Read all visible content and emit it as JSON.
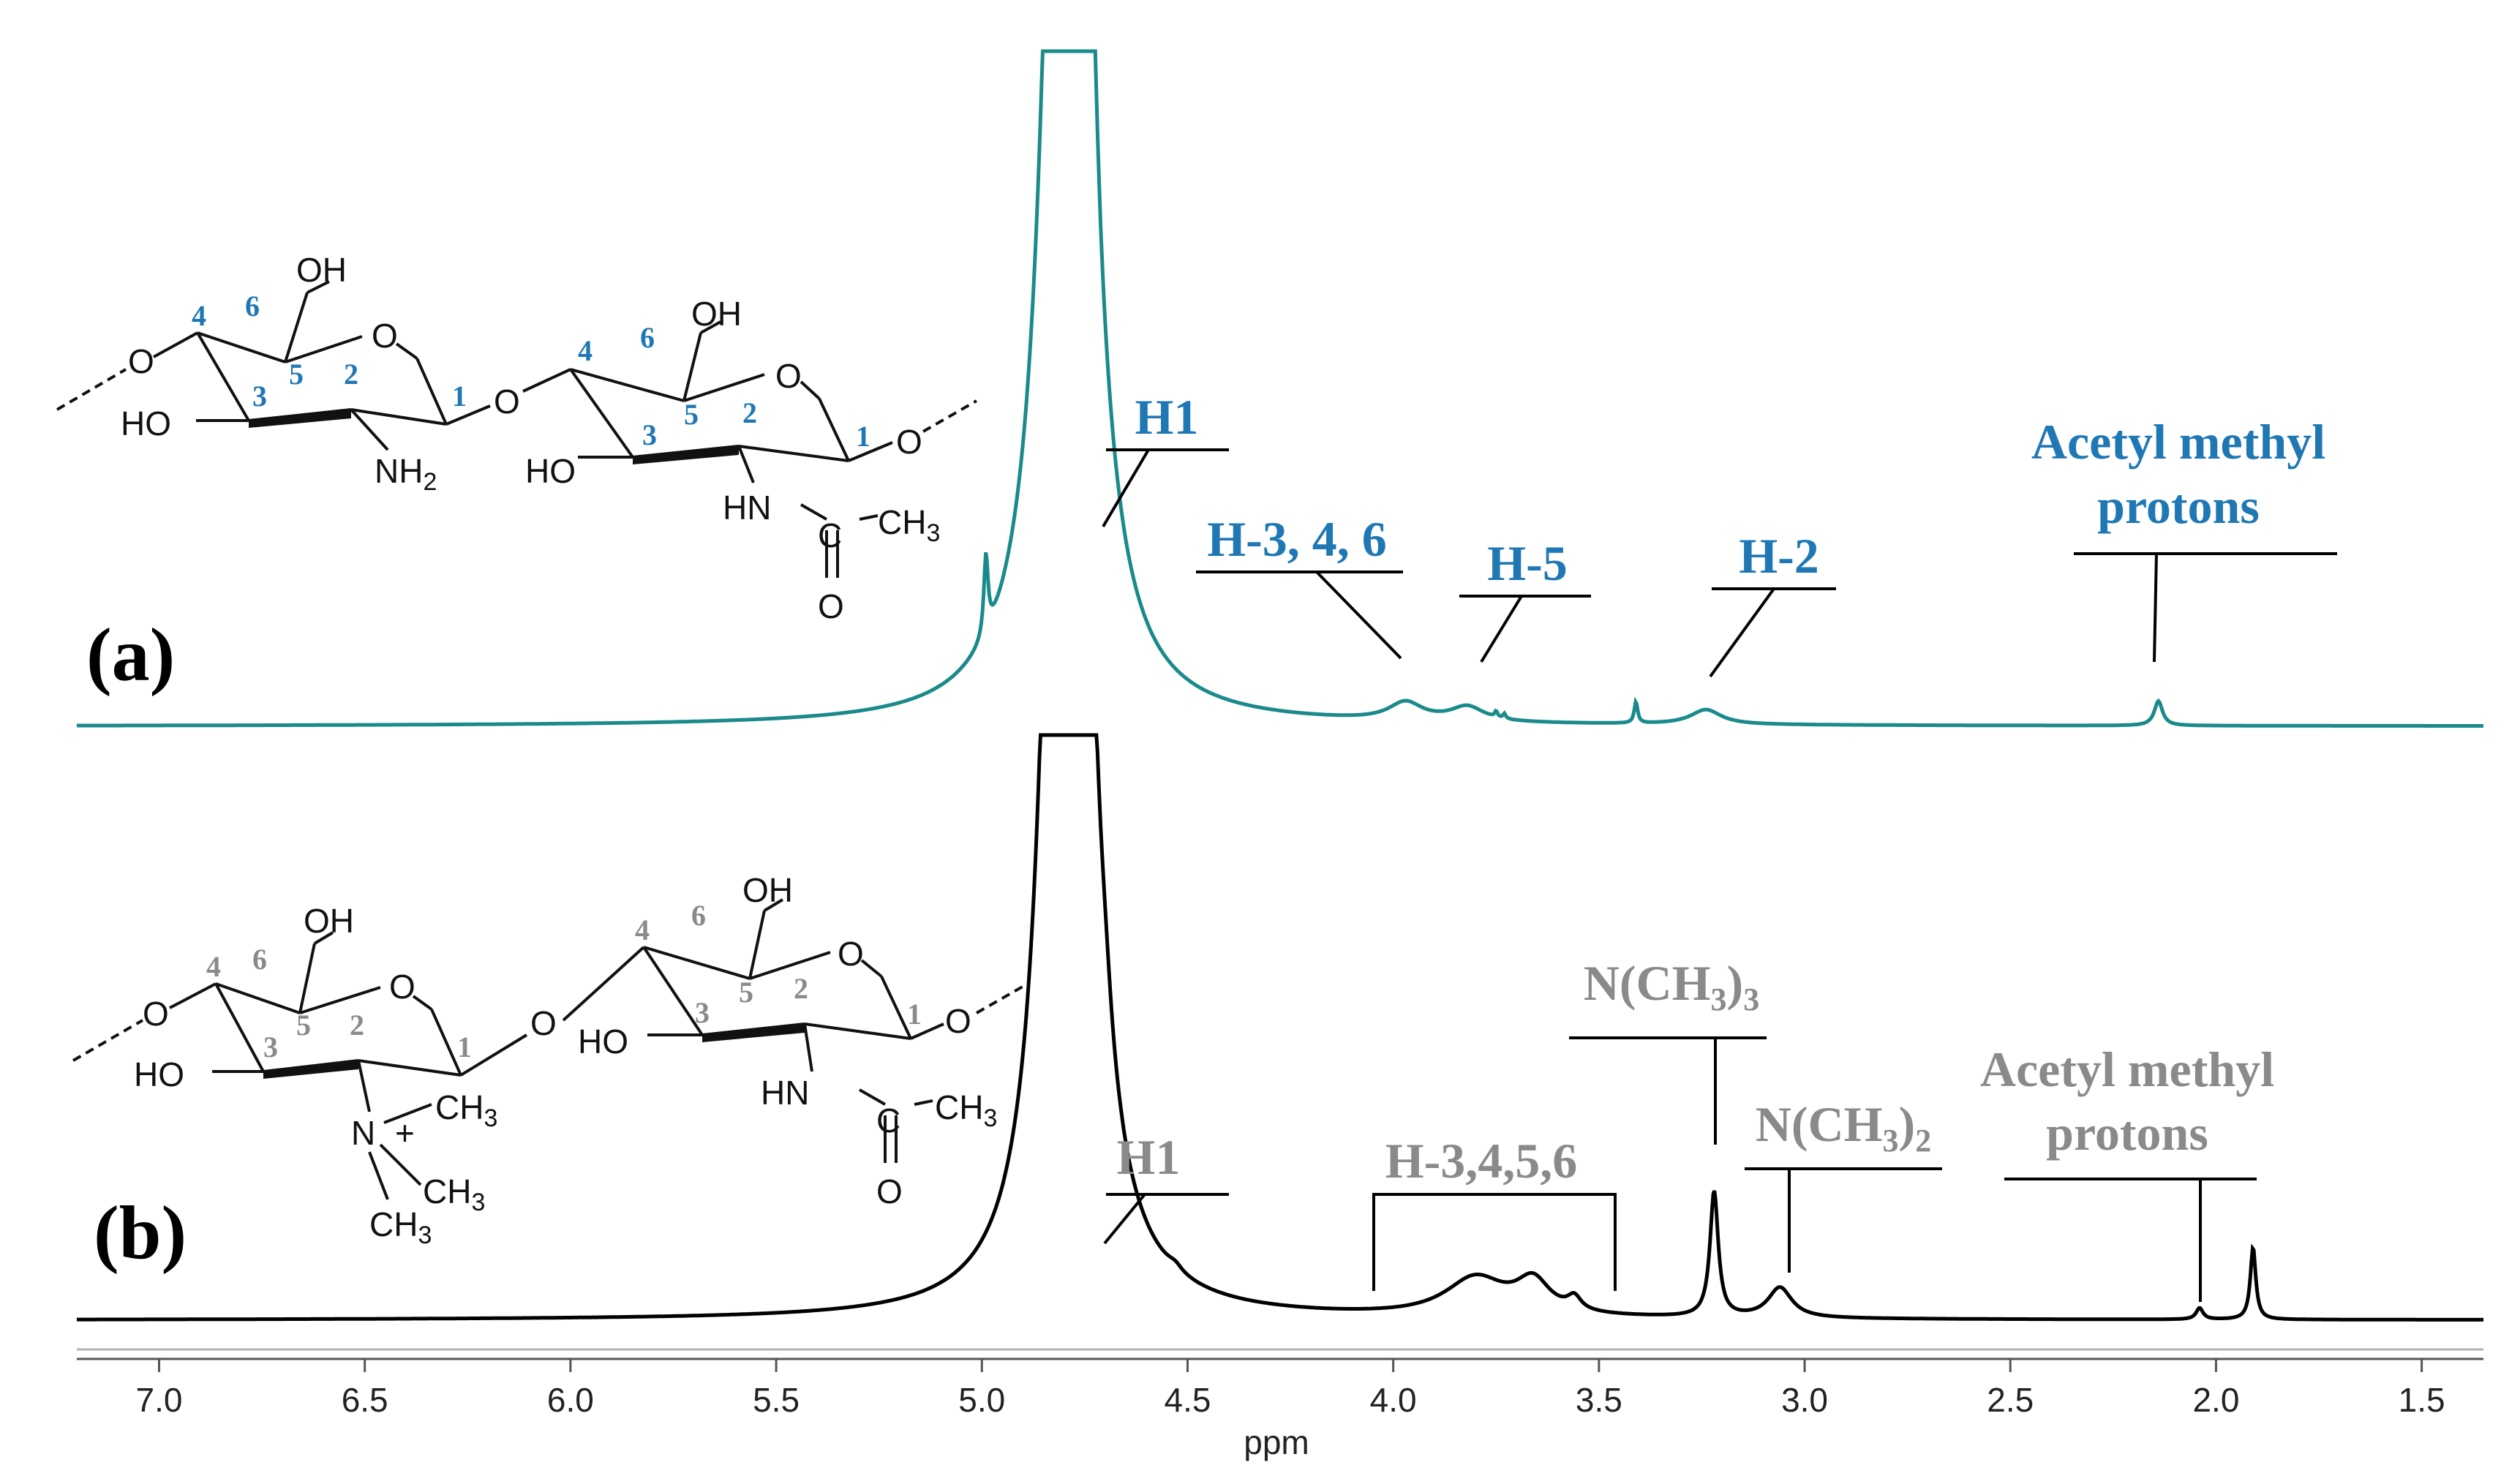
{
  "chart_data": {
    "type": "line",
    "xlabel": "ppm",
    "xlim": [
      7.2,
      1.35
    ],
    "x_reversed": true,
    "x_ticks": [
      "7.0",
      "6.5",
      "6.0",
      "5.5",
      "5.0",
      "4.5",
      "4.0",
      "3.5",
      "3.0",
      "2.5",
      "2.0",
      "1.5"
    ],
    "panels": [
      {
        "label": "(a)",
        "color": "#1a8a8a",
        "label_color": "#1f78b4",
        "baseline": 0.0,
        "peaks": [
          {
            "center": 4.79,
            "height": 60.0,
            "width": 0.045
          },
          {
            "center": 4.99,
            "height": 2.4,
            "width": 0.006
          },
          {
            "center": 4.73,
            "height": 1.6,
            "width": 0.012
          },
          {
            "center": 3.97,
            "height": 0.55,
            "width": 0.05
          },
          {
            "center": 3.82,
            "height": 0.45,
            "width": 0.05
          },
          {
            "center": 3.75,
            "height": 0.18,
            "width": 0.004
          },
          {
            "center": 3.73,
            "height": 0.15,
            "width": 0.004
          },
          {
            "center": 3.41,
            "height": 0.65,
            "width": 0.005
          },
          {
            "center": 3.24,
            "height": 0.45,
            "width": 0.045
          },
          {
            "center": 2.14,
            "height": 0.75,
            "width": 0.012
          }
        ],
        "annotations": [
          {
            "text": "H1",
            "x": 4.71
          },
          {
            "text": "H-3, 4, 6",
            "x": 3.98
          },
          {
            "text": "H-5",
            "x": 3.82
          },
          {
            "text": "H-2",
            "x": 3.24
          },
          {
            "text_line1": "Acetyl methyl",
            "text_line2": "protons",
            "x": 2.14
          }
        ],
        "structure_numbers": [
          "4",
          "6",
          "5",
          "3",
          "2",
          "1",
          "4",
          "6",
          "5",
          "3",
          "2",
          "1"
        ],
        "structure_text": [
          "OH",
          "O",
          "O",
          "HO",
          "NH2",
          "O",
          "OH",
          "O",
          "HO",
          "HN",
          "C",
          "CH3",
          "O",
          "O"
        ]
      },
      {
        "label": "(b)",
        "color": "#000000",
        "label_color": "#8a8a8a",
        "baseline": 0.0,
        "peaks": [
          {
            "center": 4.79,
            "height": 60.0,
            "width": 0.04
          },
          {
            "center": 4.7,
            "height": 0.9,
            "width": 0.02
          },
          {
            "center": 4.53,
            "height": 0.15,
            "width": 0.02
          },
          {
            "center": 3.8,
            "height": 1.0,
            "width": 0.09
          },
          {
            "center": 3.66,
            "height": 0.85,
            "width": 0.05
          },
          {
            "center": 3.56,
            "height": 0.35,
            "width": 0.02
          },
          {
            "center": 3.22,
            "height": 3.3,
            "width": 0.012
          },
          {
            "center": 3.06,
            "height": 0.8,
            "width": 0.035
          },
          {
            "center": 2.04,
            "height": 0.3,
            "width": 0.01
          },
          {
            "center": 1.91,
            "height": 1.9,
            "width": 0.008
          }
        ],
        "annotations": [
          {
            "text": "H1",
            "x": 4.72
          },
          {
            "text": "H-3,4,5,6",
            "x_from": 4.06,
            "x_to": 3.49
          },
          {
            "text": "N(CH3)3",
            "x": 3.22
          },
          {
            "text": "N(CH3)2",
            "x": 3.06
          },
          {
            "text_line1": "Acetyl methyl",
            "text_line2": "protons",
            "x": 2.04
          }
        ],
        "structure_numbers": [
          "4",
          "6",
          "5",
          "3",
          "2",
          "1",
          "4",
          "6",
          "5",
          "3",
          "2",
          "1"
        ],
        "structure_text": [
          "OH",
          "O",
          "O",
          "HO",
          "N",
          "+",
          "CH3",
          "CH3",
          "CH3",
          "OH",
          "O",
          "HO",
          "HN",
          "C",
          "CH3",
          "O",
          "O"
        ]
      }
    ]
  }
}
